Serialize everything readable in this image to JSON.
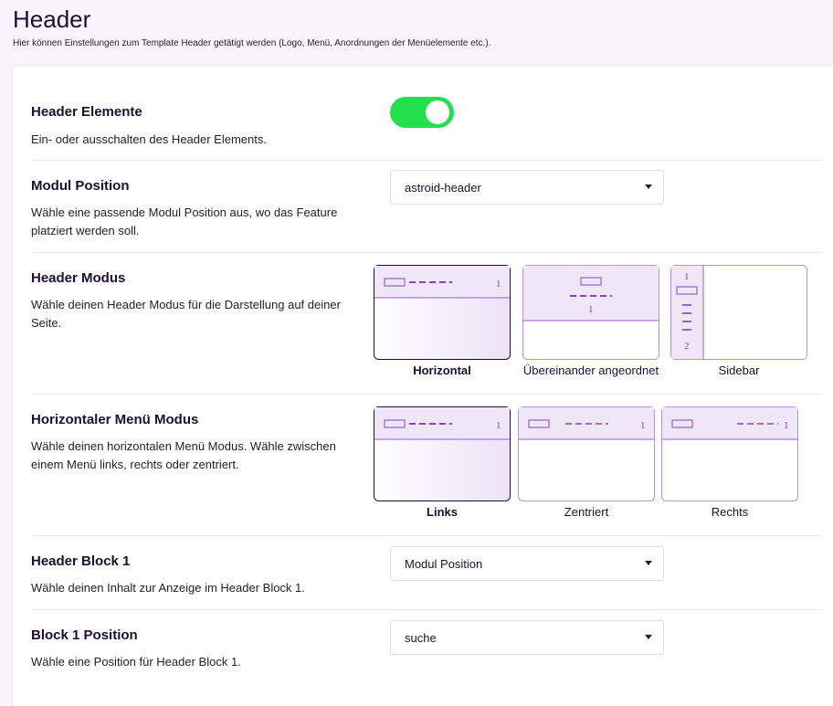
{
  "page": {
    "title": "Header",
    "subtitle": "Hier können Einstellungen zum Template Header getätigt werden (Logo, Menü, Anordnungen der Menüelemente etc.)."
  },
  "settings": {
    "header_elements": {
      "title": "Header Elemente",
      "description": "Ein- oder ausschalten des Header Elements.",
      "enabled": true,
      "color": "#22e04c"
    },
    "module_position": {
      "title": "Modul Position",
      "description": "Wähle eine passende Modul Position aus, wo das Feature platziert werden soll.",
      "value": "astroid-header"
    },
    "header_mode": {
      "title": "Header Modus",
      "description": "Wähle deinen Header Modus für die Darstellung auf deiner Seite.",
      "options": [
        "Horizontal",
        "Übereinander angeordnet",
        "Sidebar"
      ],
      "selected": "Horizontal",
      "digits": [
        "1",
        "1",
        "1",
        "2"
      ]
    },
    "menu_mode": {
      "title": "Horizontaler Menü Modus",
      "description": "Wähle deinen horizontalen Menü Modus. Wähle zwischen einem Menü links, rechts oder zentriert.",
      "options": [
        "Links",
        "Zentriert",
        "Rechts"
      ],
      "selected": "Links",
      "digit": "1"
    },
    "header_block_1": {
      "title": "Header Block 1",
      "description": "Wähle deinen Inhalt zur Anzeige im Header Block 1.",
      "value": "Modul Position"
    },
    "block_1_position": {
      "title": "Block 1 Position",
      "description": "Wähle eine Position für Header Block 1.",
      "value": "suche"
    }
  },
  "colors": {
    "accent": "#9b59d0",
    "page_bg": "#f8f5fc"
  }
}
